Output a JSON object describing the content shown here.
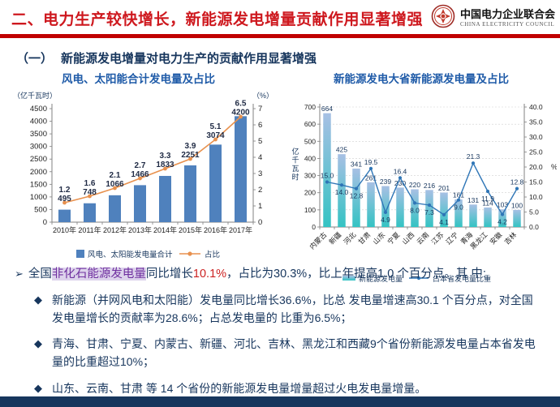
{
  "header": {
    "title": "二、电力生产较快增长，新能源发电增量贡献作用显著增强",
    "logo_cn": "中国电力企业联合会",
    "logo_en": "CHINA ELECTRICITY COUNCIL"
  },
  "section_heading": {
    "index": "（一）",
    "text": "新能源发电增量对电力生产的贡献作用显著增强"
  },
  "colors": {
    "header_red": "#CE181E",
    "rule_red": "#C00000",
    "navy": "#17365D",
    "chart_title_blue": "#1F5BA8",
    "bar_blue": "#4F81BD",
    "line_orange": "#E8914E",
    "bar_grad_top": "#A7C0E4",
    "bar_grad_bottom": "#34C3C3",
    "line_blue": "#2E75B6",
    "axis_gray": "#808080",
    "grid_gray": "#CFCFCF",
    "label_dark": "#1F2A44"
  },
  "chart_data": [
    {
      "type": "bar+line",
      "title": "风电、太阳能合计发电量及占比",
      "left_axis_label": "（亿千瓦时）",
      "right_axis_label": "（%）",
      "categories": [
        "2010年",
        "2011年",
        "2012年",
        "2013年",
        "2014年",
        "2015年",
        "2016年",
        "2017年"
      ],
      "series": [
        {
          "name": "风电、太阳能发电量合计",
          "type": "bar",
          "axis": "left",
          "values": [
            495,
            748,
            1066,
            1466,
            1833,
            2251,
            3074,
            4200
          ]
        },
        {
          "name": "占比",
          "type": "line",
          "axis": "right",
          "values": [
            1.2,
            1.6,
            2.1,
            2.7,
            3.3,
            3.9,
            5.1,
            6.5
          ]
        }
      ],
      "left_ylim": [
        0,
        4500
      ],
      "left_step": 500,
      "right_ylim": [
        0,
        7
      ],
      "right_step": 1,
      "grid": false,
      "legend_position": "bottom"
    },
    {
      "type": "bar+line",
      "title": "新能源发电大省新能源发电量及占比",
      "left_axis_label": "亿千瓦时",
      "right_axis_label": "%",
      "categories": [
        "内蒙古",
        "新疆",
        "河北",
        "甘肃",
        "山东",
        "宁夏",
        "山西",
        "云南",
        "江苏",
        "辽宁",
        "青海",
        "黑龙江",
        "安徽",
        "吉林"
      ],
      "series": [
        {
          "name": "新能源发电量",
          "type": "bar",
          "axis": "left",
          "values": [
            664,
            425,
            341,
            261,
            239,
            230,
            220,
            216,
            201,
            161,
            131,
            114,
            103,
            100
          ]
        },
        {
          "name": "占本省发电量比重",
          "type": "line",
          "axis": "right",
          "values": [
            15.0,
            14.0,
            12.8,
            19.5,
            4.9,
            16.4,
            8.0,
            7.3,
            4.1,
            9.0,
            21.3,
            11.9,
            4.2,
            12.8
          ]
        }
      ],
      "left_ylim": [
        0,
        700
      ],
      "left_step": 100,
      "right_ylim": [
        0,
        40
      ],
      "right_step": 5,
      "grid": true,
      "legend_position": "bottom"
    }
  ],
  "bullets": {
    "arrow_marker": "➢",
    "diamond_marker": "◆",
    "main": {
      "prefix": "全国",
      "highlight": "非化石能源发电量",
      "mid": "同比增长",
      "pct": "10.1%",
      "rest": "，占比为30.3%，比上年提高1.0 个百分点。其 中:"
    },
    "sub": [
      {
        "text": "新能源（并网风电和太阳能）发电量同比增长36.6%，比总 发电量增速高30.1 个百分点，对全国发电量增长的贡献率为28.6%；占总发电量的 比重为6.5%；"
      },
      {
        "text": "青海、甘肃、宁夏、内蒙古、新疆、河北、吉林、黑龙江和西藏9个省份新能源发电量占本省发电量的比重超过10%；"
      },
      {
        "text": "山东、云南、甘肃 等 14 个省份的新能源发电量增量超过火电发电量增量。"
      }
    ]
  }
}
